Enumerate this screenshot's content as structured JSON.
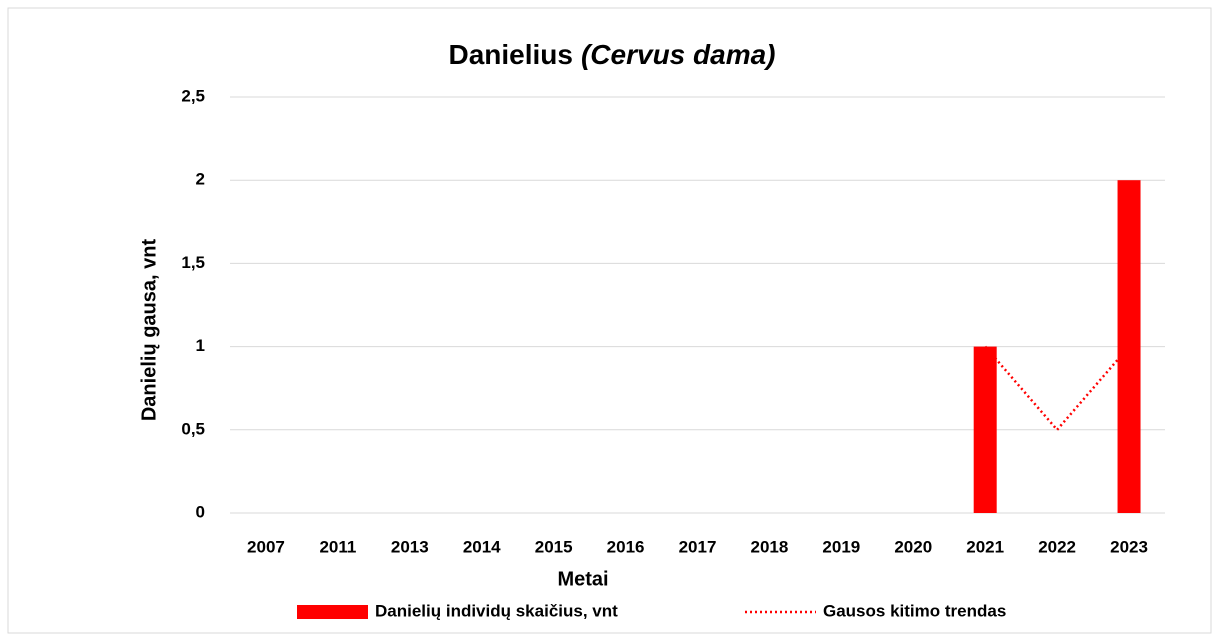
{
  "chart_data": {
    "type": "bar",
    "title": "Danielius",
    "title_species": "(Cervus dama)",
    "x_label": "Metai",
    "y_label": "Danielių gausa, vnt",
    "categories": [
      "2007",
      "2011",
      "2013",
      "2014",
      "2015",
      "2016",
      "2017",
      "2018",
      "2019",
      "2020",
      "2021",
      "2022",
      "2023"
    ],
    "series": [
      {
        "name": "Danielių individų skaičius, vnt",
        "color": "#ff0000",
        "type": "bar",
        "values": [
          0,
          0,
          0,
          0,
          0,
          0,
          0,
          0,
          0,
          0,
          1,
          0,
          2
        ]
      },
      {
        "name": "Gausos kitimo trendas",
        "color": "#ff0000",
        "type": "line",
        "style": "dotted",
        "values": [
          null,
          null,
          null,
          null,
          null,
          null,
          null,
          null,
          null,
          null,
          1,
          0.5,
          1
        ]
      }
    ],
    "ylim": [
      0,
      2.5
    ],
    "yticks": [
      0,
      {
        "value": 0.5,
        "label": "0,5"
      },
      1,
      {
        "value": 1.5,
        "label": "1,5"
      },
      2,
      {
        "value": 2.5,
        "label": "2,5"
      }
    ],
    "grid": true,
    "legend": "bottom"
  }
}
